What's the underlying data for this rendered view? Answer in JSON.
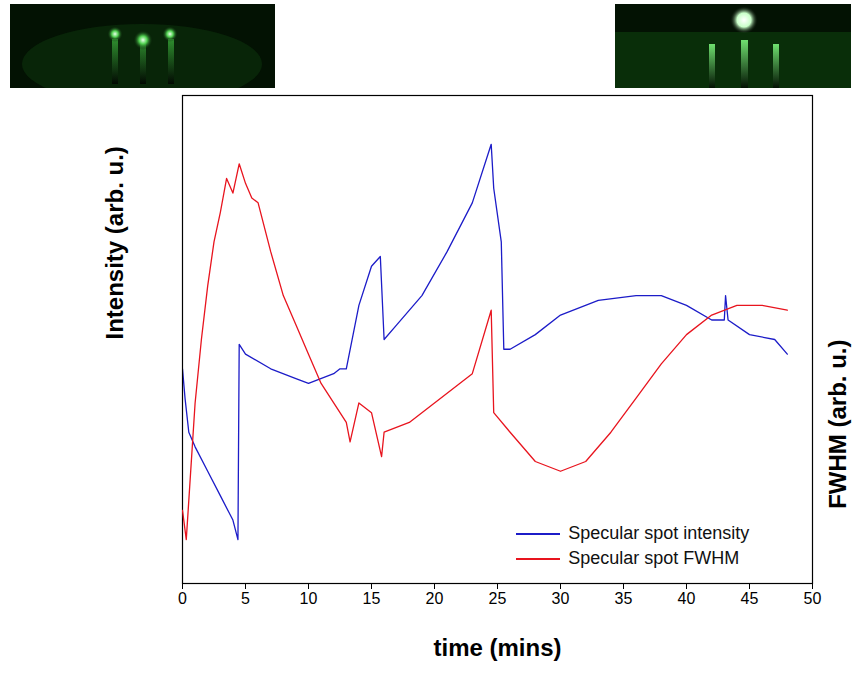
{
  "chart_data": {
    "type": "line",
    "x_label": "time (mins)",
    "y_label": "Intensity (arb. u.)",
    "y2_label": "FWHM (arb. u.)",
    "xlim": [
      0,
      50
    ],
    "xticks": [
      0,
      5,
      10,
      15,
      20,
      25,
      30,
      35,
      40,
      45,
      50
    ],
    "ylim": [
      0,
      100
    ],
    "y2lim": [
      0,
      100
    ],
    "tick_labels": "x",
    "legend": "bottom-right",
    "series": [
      {
        "name": "Specular spot intensity",
        "color": "#1c1cc8",
        "x": [
          0,
          0.2,
          0.5,
          1,
          2,
          3,
          4,
          4.4,
          4.5,
          5,
          7,
          9,
          10,
          12,
          12.5,
          13,
          14,
          15,
          15.7,
          16,
          17,
          19,
          21,
          23,
          24.5,
          24.7,
          25.3,
          25.5,
          26,
          28,
          30,
          33,
          36,
          38,
          40,
          42,
          43,
          43.1,
          43.3,
          45,
          47,
          48
        ],
        "values": [
          44,
          38,
          31,
          28,
          23,
          18,
          13,
          9,
          49,
          47,
          44,
          42,
          41,
          43,
          44,
          44,
          57,
          65,
          67,
          50,
          53,
          59,
          68,
          78,
          90,
          81,
          70,
          48,
          48,
          51,
          55,
          58,
          59,
          59,
          57,
          54,
          54,
          59,
          54,
          51,
          50,
          47
        ]
      },
      {
        "name": "Specular spot FWHM",
        "color": "#e8141e",
        "axis": "y2",
        "x": [
          0,
          0.3,
          1,
          1.5,
          2,
          2.5,
          3,
          3.5,
          4,
          4.5,
          5,
          5.5,
          6,
          7,
          8,
          9,
          10,
          11,
          12,
          13,
          13.3,
          14,
          15,
          15.8,
          16,
          18,
          20,
          22,
          23,
          24.5,
          24.7,
          26,
          28,
          30,
          32,
          34,
          36,
          38,
          40,
          42,
          44,
          46,
          48
        ],
        "values": [
          15,
          9,
          37,
          50,
          61,
          70,
          76,
          83,
          80,
          86,
          82,
          79,
          78,
          68,
          59,
          53,
          47,
          41,
          37,
          33,
          29,
          37,
          35,
          26,
          31,
          33,
          37,
          41,
          43,
          56,
          35,
          31,
          25,
          23,
          25,
          31,
          38,
          45,
          51,
          55,
          57,
          57,
          56
        ]
      }
    ]
  }
}
